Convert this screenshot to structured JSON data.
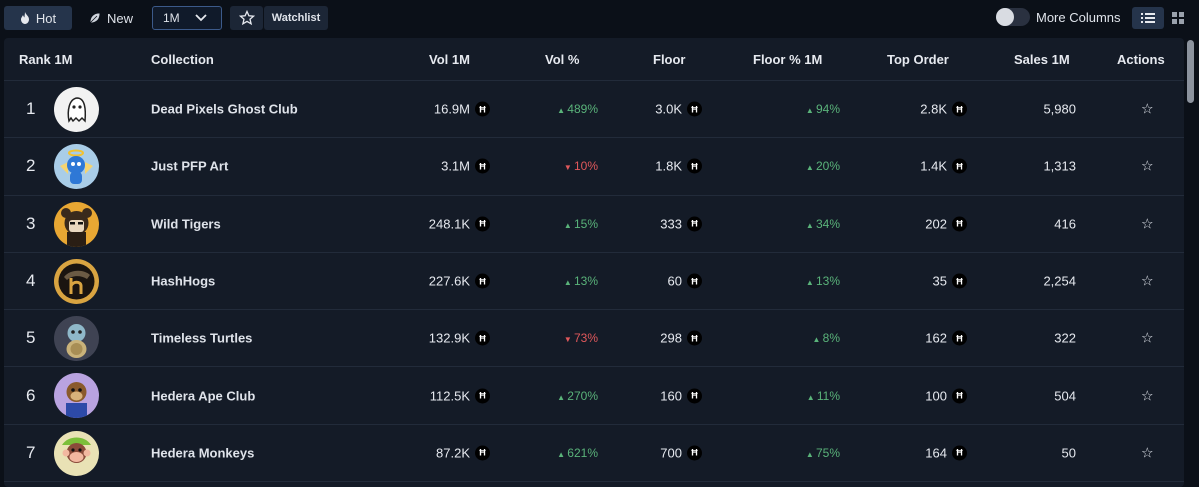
{
  "toolbar": {
    "hot_label": "Hot",
    "new_label": "New",
    "period_value": "1M",
    "watchlist_label": "Watchlist",
    "more_columns_label": "More Columns"
  },
  "table": {
    "columns": [
      "Rank 1M",
      "Collection",
      "Vol 1M",
      "Vol %",
      "Floor",
      "Floor % 1M",
      "Top Order",
      "Sales 1M",
      "Actions"
    ],
    "currency_symbol": "Ħ",
    "rows": [
      {
        "rank": "1",
        "name": "Dead Pixels Ghost Club",
        "vol": "16.9M",
        "vol_pct": "489%",
        "vol_dir": "up",
        "floor": "3.0K",
        "floor_pct": "94%",
        "floor_dir": "up",
        "top_order": "2.8K",
        "sales": "5,980"
      },
      {
        "rank": "2",
        "name": "Just PFP Art",
        "vol": "3.1M",
        "vol_pct": "10%",
        "vol_dir": "down",
        "floor": "1.8K",
        "floor_pct": "20%",
        "floor_dir": "up",
        "top_order": "1.4K",
        "sales": "1,313"
      },
      {
        "rank": "3",
        "name": "Wild Tigers",
        "vol": "248.1K",
        "vol_pct": "15%",
        "vol_dir": "up",
        "floor": "333",
        "floor_pct": "34%",
        "floor_dir": "up",
        "top_order": "202",
        "sales": "416"
      },
      {
        "rank": "4",
        "name": "HashHogs",
        "vol": "227.6K",
        "vol_pct": "13%",
        "vol_dir": "up",
        "floor": "60",
        "floor_pct": "13%",
        "floor_dir": "up",
        "top_order": "35",
        "sales": "2,254"
      },
      {
        "rank": "5",
        "name": "Timeless Turtles",
        "vol": "132.9K",
        "vol_pct": "73%",
        "vol_dir": "down",
        "floor": "298",
        "floor_pct": "8%",
        "floor_dir": "up",
        "top_order": "162",
        "sales": "322"
      },
      {
        "rank": "6",
        "name": "Hedera Ape Club",
        "vol": "112.5K",
        "vol_pct": "270%",
        "vol_dir": "up",
        "floor": "160",
        "floor_pct": "11%",
        "floor_dir": "up",
        "top_order": "100",
        "sales": "504"
      },
      {
        "rank": "7",
        "name": "Hedera Monkeys",
        "vol": "87.2K",
        "vol_pct": "621%",
        "vol_dir": "up",
        "floor": "700",
        "floor_pct": "75%",
        "floor_dir": "up",
        "top_order": "164",
        "sales": "50"
      }
    ]
  },
  "colors": {
    "positive": "#5ab37a",
    "negative": "#e0585b",
    "active_tab": "#25344b"
  },
  "icons": {
    "hot": "flame-icon",
    "new": "leaf-icon",
    "period": "chevron-down-icon",
    "watchlist": "star-icon",
    "action": "star-outline-icon",
    "list_view": "list-view-icon",
    "grid_view": "grid-view-icon"
  }
}
